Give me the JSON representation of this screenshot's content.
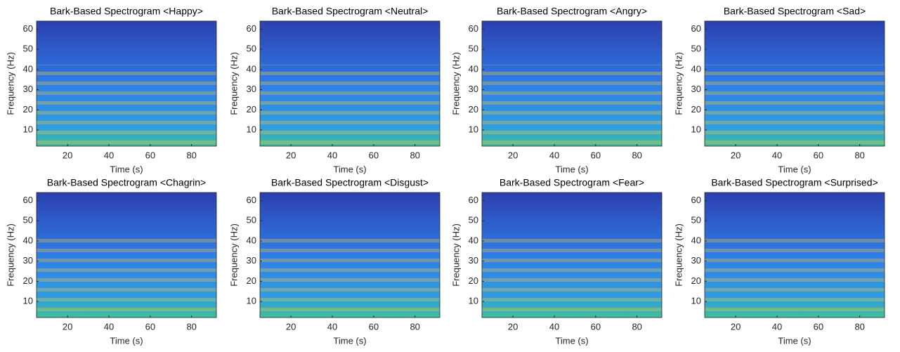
{
  "chart_data": [
    {
      "type": "spectrogram",
      "title": "Bark-Based Spectrogram <Happy>",
      "xlabel": "Time (s)",
      "ylabel": "Frequency (Hz)",
      "xlim": [
        5,
        92
      ],
      "ylim": [
        2,
        64
      ],
      "xticks": [
        20,
        40,
        60,
        80
      ],
      "yticks": [
        10,
        20,
        30,
        40,
        50,
        60
      ]
    },
    {
      "type": "spectrogram",
      "title": "Bark-Based Spectrogram <Neutral>",
      "xlabel": "Time (s)",
      "ylabel": "Frequency (Hz)",
      "xlim": [
        5,
        92
      ],
      "ylim": [
        2,
        64
      ],
      "xticks": [
        20,
        40,
        60,
        80
      ],
      "yticks": [
        10,
        20,
        30,
        40,
        50,
        60
      ]
    },
    {
      "type": "spectrogram",
      "title": "Bark-Based Spectrogram <Angry>",
      "xlabel": "Time (s)",
      "ylabel": "Frequency (Hz)",
      "xlim": [
        5,
        92
      ],
      "ylim": [
        2,
        64
      ],
      "xticks": [
        20,
        40,
        60,
        80
      ],
      "yticks": [
        10,
        20,
        30,
        40,
        50,
        60
      ]
    },
    {
      "type": "spectrogram",
      "title": "Bark-Based Spectrogram <Sad>",
      "xlabel": "Time (s)",
      "ylabel": "Frequency (Hz)",
      "xlim": [
        5,
        92
      ],
      "ylim": [
        2,
        64
      ],
      "xticks": [
        20,
        40,
        60,
        80
      ],
      "yticks": [
        10,
        20,
        30,
        40,
        50,
        60
      ]
    },
    {
      "type": "spectrogram",
      "title": "Bark-Based Spectrogram <Chagrin>",
      "xlabel": "Time (s)",
      "ylabel": "Frequency (Hz)",
      "xlim": [
        5,
        92
      ],
      "ylim": [
        2,
        64
      ],
      "xticks": [
        20,
        40,
        60,
        80
      ],
      "yticks": [
        10,
        20,
        30,
        40,
        50,
        60
      ]
    },
    {
      "type": "spectrogram",
      "title": "Bark-Based Spectrogram <Disgust>",
      "xlabel": "Time (s)",
      "ylabel": "Frequency (Hz)",
      "xlim": [
        5,
        92
      ],
      "ylim": [
        2,
        64
      ],
      "xticks": [
        20,
        40,
        60,
        80
      ],
      "yticks": [
        10,
        20,
        30,
        40,
        50,
        60
      ]
    },
    {
      "type": "spectrogram",
      "title": "Bark-Based Spectrogram <Fear>",
      "xlabel": "Time (s)",
      "ylabel": "Frequency (Hz)",
      "xlim": [
        5,
        92
      ],
      "ylim": [
        2,
        64
      ],
      "xticks": [
        20,
        40,
        60,
        80
      ],
      "yticks": [
        10,
        20,
        30,
        40,
        50,
        60
      ]
    },
    {
      "type": "spectrogram",
      "title": "Bark-Based Spectrogram <Surprised>",
      "xlabel": "Time (s)",
      "ylabel": "Frequency (Hz)",
      "xlim": [
        5,
        92
      ],
      "ylim": [
        2,
        64
      ],
      "xticks": [
        20,
        40,
        60,
        80
      ],
      "yticks": [
        10,
        20,
        30,
        40,
        50,
        60
      ]
    }
  ]
}
